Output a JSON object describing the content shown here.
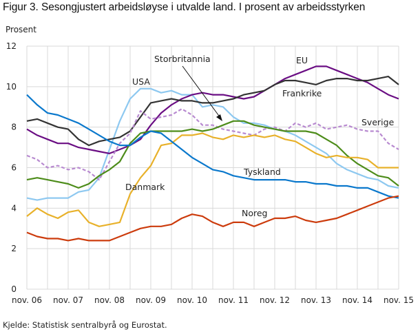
{
  "chart_data": {
    "type": "line",
    "title": "Figur 3. Sesongjustert arbeidsløyse i utvalde land. I prosent av arbeidsstyrken",
    "ylabel": "Prosent",
    "xlabel": "",
    "source": "Kjelde: Statistisk sentralbyrå og Eurostat.",
    "ylim": [
      0,
      12
    ],
    "yticks": [
      "0",
      "2",
      "4",
      "6",
      "8",
      "10",
      "12"
    ],
    "xticks": [
      "nov. 06",
      "nov. 07",
      "nov. 08",
      "nov. 09",
      "nov. 10",
      "nov. 11",
      "nov. 12",
      "nov. 13",
      "nov. 14",
      "nov. 15"
    ],
    "x_months_from_nov06": [
      0,
      3,
      6,
      9,
      12,
      15,
      18,
      21,
      24,
      27,
      30,
      33,
      36,
      39,
      42,
      45,
      48,
      51,
      54,
      57,
      60,
      63,
      66,
      69,
      72,
      75,
      78,
      81,
      84,
      87,
      90,
      93,
      96,
      99,
      102,
      105,
      108
    ],
    "grid": true,
    "series": [
      {
        "name": "USA",
        "color": "#8dc8f0",
        "dashed": false,
        "values": [
          4.5,
          4.4,
          4.5,
          4.5,
          4.5,
          4.8,
          4.9,
          5.5,
          6.9,
          8.3,
          9.4,
          9.9,
          9.9,
          9.7,
          9.8,
          9.6,
          9.6,
          9.0,
          9.1,
          9.0,
          8.5,
          8.2,
          8.2,
          8.1,
          7.9,
          7.8,
          7.6,
          7.3,
          7.0,
          6.7,
          6.2,
          5.9,
          5.7,
          5.5,
          5.4,
          5.1,
          5.0
        ]
      },
      {
        "name": "EU",
        "color": "#6a0d83",
        "dashed": false,
        "values": [
          7.9,
          7.6,
          7.4,
          7.2,
          7.2,
          7.0,
          6.9,
          6.8,
          6.7,
          6.9,
          7.1,
          7.4,
          8.1,
          8.7,
          9.1,
          9.4,
          9.6,
          9.7,
          9.6,
          9.6,
          9.5,
          9.4,
          9.5,
          9.8,
          10.1,
          10.4,
          10.6,
          10.8,
          11.0,
          11.0,
          10.8,
          10.6,
          10.4,
          10.2,
          9.9,
          9.6,
          9.4
        ]
      },
      {
        "name": "Frankrike",
        "color": "#333333",
        "dashed": false,
        "values": [
          8.3,
          8.4,
          8.2,
          8.0,
          7.9,
          7.4,
          7.1,
          7.3,
          7.4,
          7.5,
          7.8,
          8.5,
          9.2,
          9.3,
          9.4,
          9.3,
          9.3,
          9.2,
          9.2,
          9.3,
          9.4,
          9.6,
          9.7,
          9.8,
          10.1,
          10.3,
          10.3,
          10.2,
          10.1,
          10.3,
          10.4,
          10.4,
          10.3,
          10.3,
          10.4,
          10.5,
          10.1
        ]
      },
      {
        "name": "Sverige",
        "color": "#b88ad0",
        "dashed": true,
        "values": [
          6.6,
          6.4,
          6.0,
          6.1,
          5.9,
          6.0,
          5.8,
          5.4,
          6.3,
          7.2,
          7.7,
          8.8,
          8.4,
          8.5,
          8.6,
          8.9,
          8.6,
          8.1,
          8.1,
          7.9,
          7.8,
          7.7,
          7.6,
          7.9,
          8.0,
          7.8,
          8.2,
          8.0,
          8.2,
          7.9,
          8.0,
          8.1,
          7.9,
          7.8,
          7.8,
          7.2,
          6.9
        ]
      },
      {
        "name": "Storbritannia",
        "color": "#4d8c1a",
        "dashed": false,
        "values": [
          5.4,
          5.5,
          5.4,
          5.3,
          5.2,
          5.0,
          5.2,
          5.6,
          5.9,
          6.3,
          7.2,
          7.7,
          7.8,
          7.8,
          7.8,
          7.8,
          7.9,
          7.8,
          7.9,
          8.1,
          8.3,
          8.3,
          8.1,
          8.0,
          7.9,
          7.8,
          7.8,
          7.8,
          7.7,
          7.4,
          7.1,
          6.6,
          6.2,
          5.9,
          5.6,
          5.5,
          5.1
        ]
      },
      {
        "name": "Danmark",
        "color": "#e8b12a",
        "dashed": false,
        "values": [
          3.6,
          4.0,
          3.7,
          3.5,
          3.8,
          3.9,
          3.3,
          3.1,
          3.2,
          3.3,
          4.7,
          5.5,
          6.1,
          7.1,
          7.2,
          7.6,
          7.6,
          7.7,
          7.5,
          7.4,
          7.6,
          7.5,
          7.6,
          7.5,
          7.6,
          7.4,
          7.3,
          7.0,
          6.7,
          6.5,
          6.6,
          6.5,
          6.5,
          6.4,
          6.0,
          6.0,
          6.0
        ]
      },
      {
        "name": "Tyskland",
        "color": "#0a78cc",
        "dashed": false,
        "values": [
          9.6,
          9.1,
          8.7,
          8.6,
          8.4,
          8.2,
          7.9,
          7.6,
          7.3,
          7.1,
          7.1,
          7.5,
          7.8,
          7.7,
          7.3,
          6.9,
          6.5,
          6.2,
          5.9,
          5.8,
          5.6,
          5.5,
          5.4,
          5.4,
          5.4,
          5.4,
          5.3,
          5.3,
          5.2,
          5.2,
          5.1,
          5.1,
          5.0,
          5.0,
          4.8,
          4.6,
          4.5
        ]
      },
      {
        "name": "Noreg",
        "color": "#cc3b0c",
        "dashed": false,
        "values": [
          2.8,
          2.6,
          2.5,
          2.5,
          2.4,
          2.5,
          2.4,
          2.4,
          2.4,
          2.6,
          2.8,
          3.0,
          3.1,
          3.1,
          3.2,
          3.5,
          3.7,
          3.6,
          3.3,
          3.1,
          3.3,
          3.3,
          3.1,
          3.3,
          3.5,
          3.5,
          3.6,
          3.4,
          3.3,
          3.4,
          3.5,
          3.7,
          3.9,
          4.1,
          4.3,
          4.5,
          4.6
        ]
      }
    ],
    "annotations": [
      {
        "text": "USA",
        "series": "USA"
      },
      {
        "text": "Storbritannia",
        "series": "Storbritannia",
        "arrow": true
      },
      {
        "text": "EU",
        "series": "EU"
      },
      {
        "text": "Frankrike",
        "series": "Frankrike"
      },
      {
        "text": "Sverige",
        "series": "Sverige"
      },
      {
        "text": "Tyskland",
        "series": "Tyskland"
      },
      {
        "text": "Danmark",
        "series": "Danmark"
      },
      {
        "text": "Noreg",
        "series": "Noreg"
      }
    ]
  }
}
